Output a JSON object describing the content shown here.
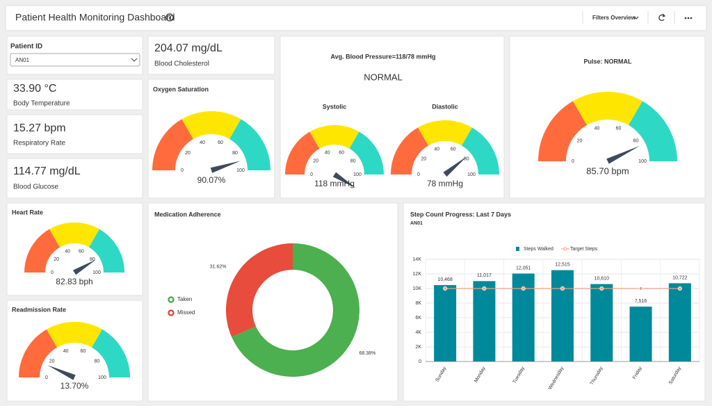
{
  "header": {
    "title": "Patient Health Monitoring Dashboard",
    "filters": "Filters Overview"
  },
  "patient": {
    "label": "Patient ID",
    "value": "AN01"
  },
  "kpis": [
    {
      "value": "204.07 mg/dL",
      "label": "Blood Cholesterol"
    },
    {
      "value": "33.90 °C",
      "label": "Body Temperature"
    },
    {
      "value": "15.27 bpm",
      "label": "Respiratory Rate"
    },
    {
      "value": "114.77 mg/dL",
      "label": "Blood Glucose"
    }
  ],
  "blood_pressure": {
    "title": "Avg. Blood Pressure=118/78 mmHg",
    "status": "NORMAL"
  },
  "chart_data": [
    {
      "type": "gauge",
      "title": "Oxygen Saturation",
      "value": 90.07,
      "value_label": "90.07%",
      "ylim": [
        0,
        100
      ],
      "yticks": [
        0,
        20,
        40,
        60,
        80,
        100
      ],
      "colors": [
        "#ff6b3d",
        "#ffe600",
        "#2dd9c5"
      ],
      "needle_color": "#3f4b5b"
    },
    {
      "type": "gauge",
      "title": "Systolic",
      "value": 118,
      "value_label": "118 mmHg",
      "ylim": [
        0,
        100
      ],
      "yticks": [
        0,
        20,
        40,
        60,
        80,
        100
      ],
      "colors": [
        "#ff6b3d",
        "#ffe600",
        "#2dd9c5"
      ],
      "needle_color": "#3f4b5b"
    },
    {
      "type": "gauge",
      "title": "Diastolic",
      "value": 78,
      "value_label": "78 mmHg",
      "ylim": [
        0,
        100
      ],
      "yticks": [
        0,
        20,
        40,
        60,
        80,
        100
      ],
      "colors": [
        "#ff6b3d",
        "#ffe600",
        "#2dd9c5"
      ],
      "needle_color": "#3f4b5b"
    },
    {
      "type": "gauge",
      "title": "Pulse: NORMAL",
      "value": 85.7,
      "value_label": "85.70 bpm",
      "ylim": [
        0,
        100
      ],
      "yticks": [
        0,
        20,
        40,
        60,
        80,
        100
      ],
      "colors": [
        "#ff6b3d",
        "#ffe600",
        "#2dd9c5"
      ],
      "needle_color": "#3f4b5b"
    },
    {
      "type": "gauge",
      "title": "Heart Rate",
      "value": 82.83,
      "value_label": "82.83 bph",
      "ylim": [
        0,
        100
      ],
      "yticks": [
        0,
        20,
        40,
        60,
        80,
        100
      ],
      "colors": [
        "#ff6b3d",
        "#ffe600",
        "#2dd9c5"
      ],
      "needle_color": "#3f4b5b"
    },
    {
      "type": "gauge",
      "title": "Readmission Rate",
      "value": 13.7,
      "value_label": "13.70%",
      "ylim": [
        0,
        100
      ],
      "yticks": [
        0,
        20,
        40,
        60,
        80,
        100
      ],
      "colors": [
        "#ff6b3d",
        "#ffe600",
        "#2dd9c5"
      ],
      "needle_color": "#3f4b5b"
    },
    {
      "type": "pie",
      "title": "Medication Adherence",
      "categories": [
        "Taken",
        "Missed"
      ],
      "values": [
        68.38,
        31.62
      ],
      "value_labels": [
        "68.38%",
        "31.62%"
      ],
      "colors": [
        "#4caf50",
        "#e74c3c"
      ]
    },
    {
      "type": "bar",
      "title": "Step Count Progress: Last 7 Days",
      "subtitle": "AN01",
      "categories": [
        "Sunday",
        "Monday",
        "Tuesday",
        "Wednesday",
        "Thursday",
        "Friday",
        "Saturday"
      ],
      "series": [
        {
          "name": "Steps Walked",
          "type": "bar",
          "color": "#00899a",
          "values": [
            10468,
            11017,
            12051,
            12515,
            10610,
            7516,
            10722
          ],
          "value_labels": [
            "10,468",
            "11,017",
            "12,051",
            "12,515",
            "10,610",
            "7,516",
            "10,722"
          ]
        },
        {
          "name": "Target Steps",
          "type": "line",
          "color": "#f0a080",
          "values": [
            10000,
            10000,
            10000,
            10000,
            10000,
            10000,
            10000
          ]
        }
      ],
      "ylim": [
        0,
        14000
      ],
      "yticks": [
        0,
        {
          "value": 2000,
          "label": "2K"
        },
        {
          "value": 4000,
          "label": "4K"
        },
        {
          "value": 6000,
          "label": "6K"
        },
        {
          "value": 8000,
          "label": "8K"
        },
        {
          "value": 10000,
          "label": "10K"
        },
        {
          "value": 12000,
          "label": "12K"
        },
        {
          "value": 14000,
          "label": "14K"
        }
      ],
      "grid": true
    }
  ]
}
